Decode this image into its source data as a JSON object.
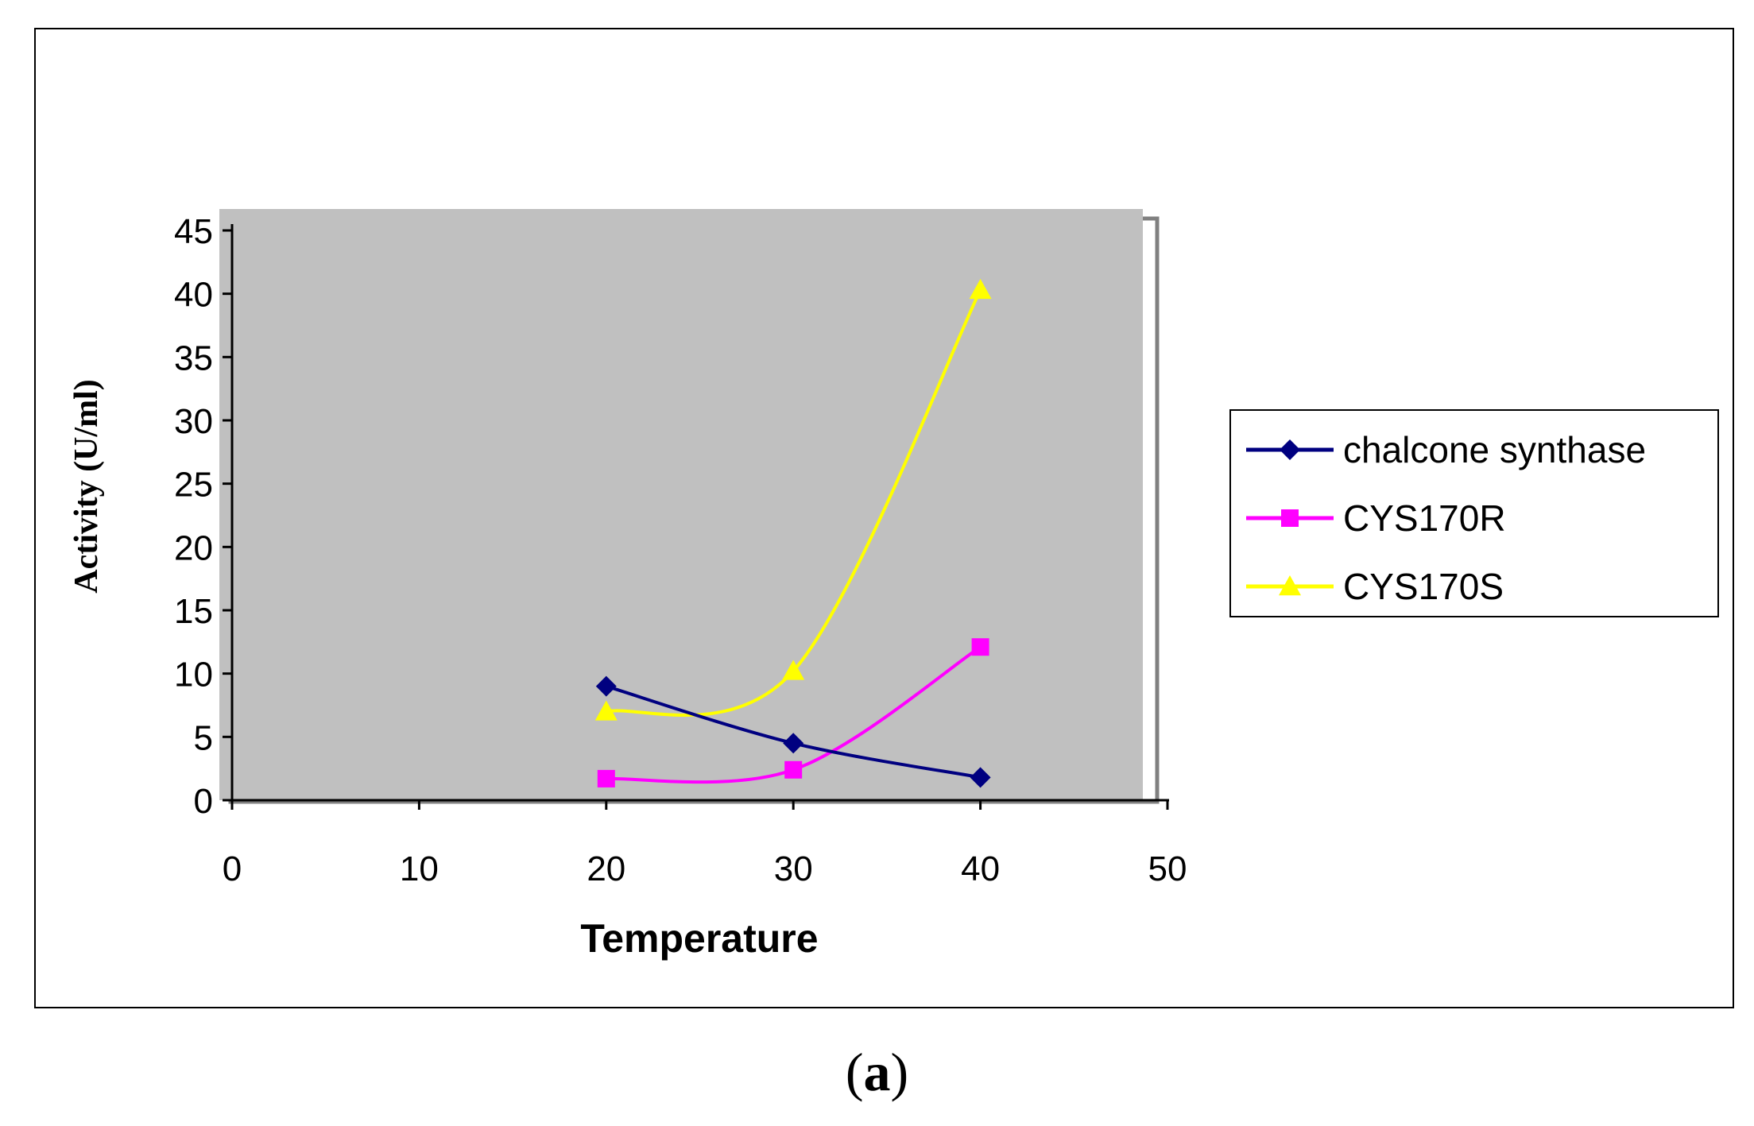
{
  "chart_data": {
    "type": "line",
    "title": "",
    "xlabel": "Temperature",
    "ylabel": "Activity (U/ml)",
    "xlim": [
      0,
      50
    ],
    "ylim": [
      0,
      45
    ],
    "x_ticks": [
      "0",
      "10",
      "20",
      "30",
      "40",
      "50"
    ],
    "y_ticks": [
      "0",
      "5",
      "10",
      "15",
      "20",
      "25",
      "30",
      "35",
      "40",
      "45"
    ],
    "grid": false,
    "legend_position": "right",
    "plot_background": "#c0c0c0",
    "series": [
      {
        "name": "chalcone synthase",
        "color": "#000080",
        "marker": "diamond",
        "x": [
          20,
          30,
          40
        ],
        "values": [
          9,
          4.5,
          1.8
        ]
      },
      {
        "name": "CYS170R",
        "color": "#ff00ff",
        "marker": "square",
        "x": [
          20,
          30,
          40
        ],
        "values": [
          1.7,
          2.4,
          12.1
        ]
      },
      {
        "name": "CYS170S",
        "color": "#ffff00",
        "marker": "triangle",
        "x": [
          20,
          30,
          40
        ],
        "values": [
          7,
          10.2,
          40.3
        ]
      }
    ]
  },
  "panel": {
    "open": "(",
    "letter": "a",
    "close": ")"
  }
}
